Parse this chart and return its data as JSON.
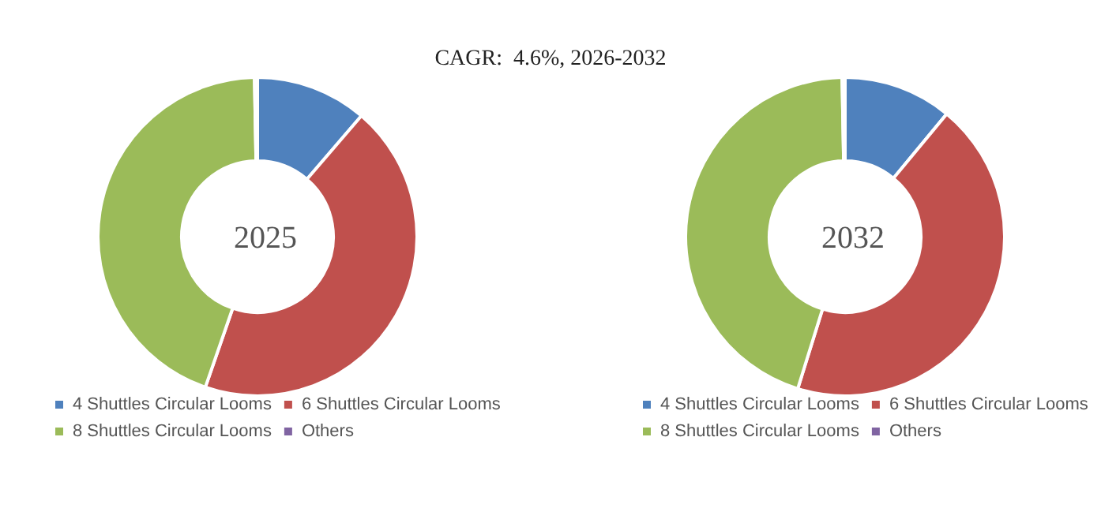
{
  "chart_data": [
    {
      "type": "donut",
      "title": "2025",
      "annotations": [
        "CAGR:  4.6%, 2026-2032"
      ],
      "categories": [
        "4 Shuttles Circular Looms",
        "6 Shuttles Circular Looms",
        "8 Shuttles Circular Looms",
        "Others"
      ],
      "values": [
        11.3,
        44.0,
        44.4,
        0.3
      ],
      "colors": [
        "#4f81bd",
        "#c0504d",
        "#9bbb59",
        "#8064a2"
      ],
      "legend": "bottom"
    },
    {
      "type": "donut",
      "title": "2032",
      "categories": [
        "4 Shuttles Circular Looms",
        "6 Shuttles Circular Looms",
        "8 Shuttles Circular Looms",
        "Others"
      ],
      "values": [
        11.0,
        43.8,
        44.9,
        0.3
      ],
      "colors": [
        "#4f81bd",
        "#c0504d",
        "#9bbb59",
        "#8064a2"
      ],
      "legend": "bottom"
    }
  ]
}
